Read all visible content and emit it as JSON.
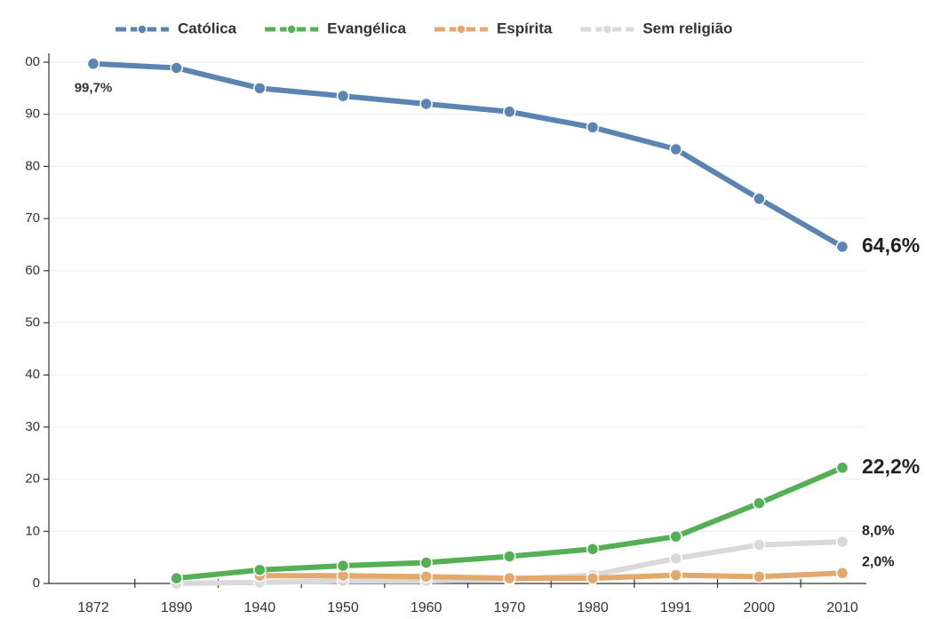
{
  "chart_data": {
    "type": "line",
    "categories": [
      "1872",
      "1890",
      "1940",
      "1950",
      "1960",
      "1970",
      "1980",
      "1991",
      "2000",
      "2010"
    ],
    "series": [
      {
        "name": "Católica",
        "color": "#5b84b1",
        "values": [
          99.7,
          98.9,
          95.0,
          93.5,
          92.0,
          90.5,
          87.5,
          83.3,
          73.8,
          64.6
        ],
        "value_labels": [
          "99,7%",
          null,
          null,
          null,
          null,
          null,
          null,
          null,
          null,
          "64,6%"
        ]
      },
      {
        "name": "Evangélica",
        "color": "#55b055",
        "values": [
          null,
          1.0,
          2.6,
          3.4,
          4.0,
          5.2,
          6.6,
          9.0,
          15.4,
          22.2
        ],
        "value_labels": [
          null,
          null,
          null,
          null,
          null,
          null,
          null,
          null,
          null,
          "22,2%"
        ]
      },
      {
        "name": "Espírita",
        "color": "#e3a86b",
        "values": [
          null,
          null,
          1.5,
          1.5,
          1.3,
          1.0,
          1.0,
          1.6,
          1.3,
          2.0
        ],
        "value_labels": [
          null,
          null,
          null,
          null,
          null,
          null,
          null,
          null,
          null,
          "2,0%"
        ]
      },
      {
        "name": "Sem religião",
        "color": "#d9d9d9",
        "values": [
          null,
          0.0,
          0.2,
          0.5,
          0.5,
          0.8,
          1.6,
          4.8,
          7.4,
          8.0
        ],
        "value_labels": [
          null,
          null,
          null,
          null,
          null,
          null,
          null,
          null,
          null,
          "8,0%"
        ]
      }
    ],
    "ylim": [
      0,
      100
    ],
    "yticks": [
      0,
      10,
      20,
      30,
      40,
      50,
      60,
      70,
      80,
      90,
      {
        "value": 100,
        "label": "00"
      }
    ],
    "grid": true
  }
}
